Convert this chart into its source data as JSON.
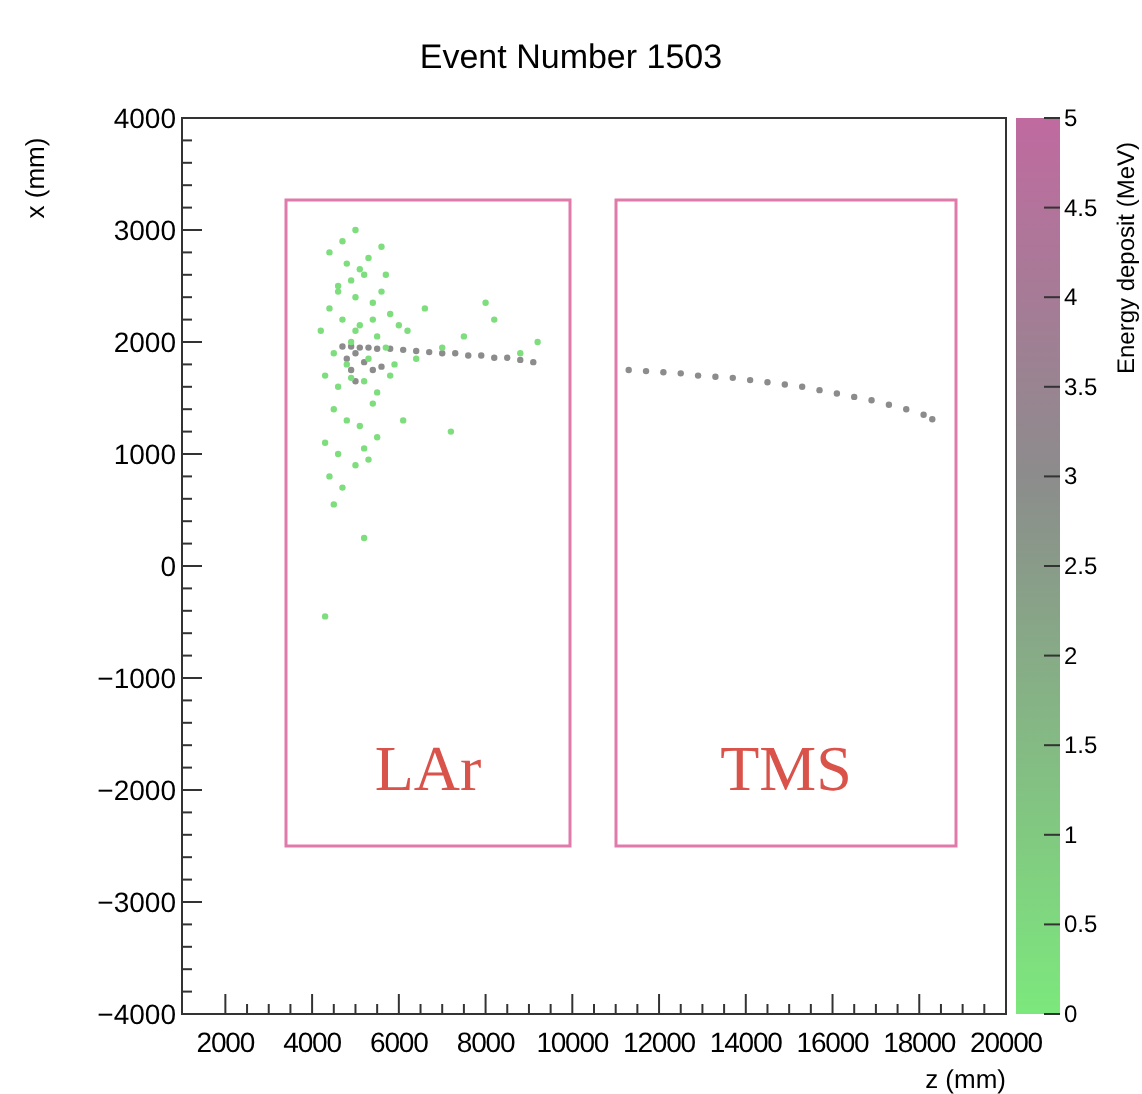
{
  "chart_data": {
    "type": "scatter",
    "title": "Event Number 1503",
    "xlabel": "z (mm)",
    "ylabel": "x (mm)",
    "clabel": "Energy deposit (MeV)",
    "xlim": [
      1000,
      20000
    ],
    "xticks": [
      2000,
      4000,
      6000,
      8000,
      10000,
      12000,
      14000,
      16000,
      18000,
      20000
    ],
    "ylim": [
      -4000,
      4000
    ],
    "yticks": [
      -4000,
      -3000,
      -2000,
      -1000,
      0,
      1000,
      2000,
      3000,
      4000
    ],
    "clim": [
      0,
      5
    ],
    "cticks": [
      0,
      0.5,
      1,
      1.5,
      2,
      2.5,
      3,
      3.5,
      4,
      4.5,
      5
    ],
    "annotations": [
      "LAr",
      "TMS"
    ],
    "grid": false,
    "marker": "circle",
    "series": [
      {
        "color": "#8c8c8c",
        "x": [
          4700,
          4900,
          5100,
          5300,
          5500,
          5800,
          6100,
          6400,
          6700,
          7000,
          7300,
          7600,
          7900,
          8200,
          8500,
          8800,
          9100,
          5000,
          5200,
          5400,
          5600,
          4800,
          4900,
          5000,
          11300,
          11700,
          12100,
          12500,
          12900,
          13300,
          13700,
          14100,
          14500,
          14900,
          15300,
          15700,
          16100,
          16500,
          16900,
          17300,
          17700,
          18100,
          18300
        ],
        "values": [
          1960,
          1960,
          1950,
          1950,
          1940,
          1940,
          1930,
          1920,
          1910,
          1900,
          1900,
          1880,
          1880,
          1860,
          1860,
          1840,
          1820,
          1900,
          1820,
          1750,
          1780,
          1850,
          1750,
          1650,
          1750,
          1740,
          1730,
          1720,
          1700,
          1690,
          1680,
          1660,
          1640,
          1620,
          1600,
          1570,
          1540,
          1510,
          1480,
          1440,
          1400,
          1350,
          1310
        ]
      },
      {
        "color": "#7ede7e",
        "x": [
          4200,
          4400,
          4500,
          4600,
          4700,
          4800,
          4900,
          5000,
          5100,
          5200,
          5300,
          5400,
          5500,
          5600,
          5700,
          5800,
          5900,
          6000,
          4300,
          4600,
          4900,
          5200,
          5500,
          5800,
          4400,
          4700,
          5000,
          5300,
          5600,
          6200,
          6600,
          7000,
          7500,
          8000,
          8800,
          9200,
          4500,
          4800,
          5100,
          5400,
          4300,
          4600,
          5000,
          5500,
          4400,
          4700,
          5200,
          6100,
          7200,
          4500,
          5300,
          4900,
          5100,
          4600,
          5400,
          4800,
          5000,
          5700,
          6400,
          8200,
          4300,
          5200
        ],
        "values": [
          2100,
          2300,
          1900,
          2500,
          2200,
          2700,
          2000,
          2400,
          2150,
          2600,
          1850,
          2350,
          2050,
          2450,
          1950,
          2250,
          1800,
          2150,
          1700,
          1600,
          1680,
          1650,
          1550,
          1700,
          2800,
          2900,
          3000,
          2750,
          2850,
          2100,
          2300,
          1950,
          2050,
          2350,
          1900,
          2000,
          1400,
          1300,
          1250,
          1450,
          1100,
          1000,
          900,
          1150,
          800,
          700,
          1050,
          1300,
          1200,
          550,
          950,
          2550,
          2650,
          2450,
          2200,
          1800,
          2100,
          2600,
          1850,
          2200,
          -450,
          250
        ]
      }
    ]
  }
}
